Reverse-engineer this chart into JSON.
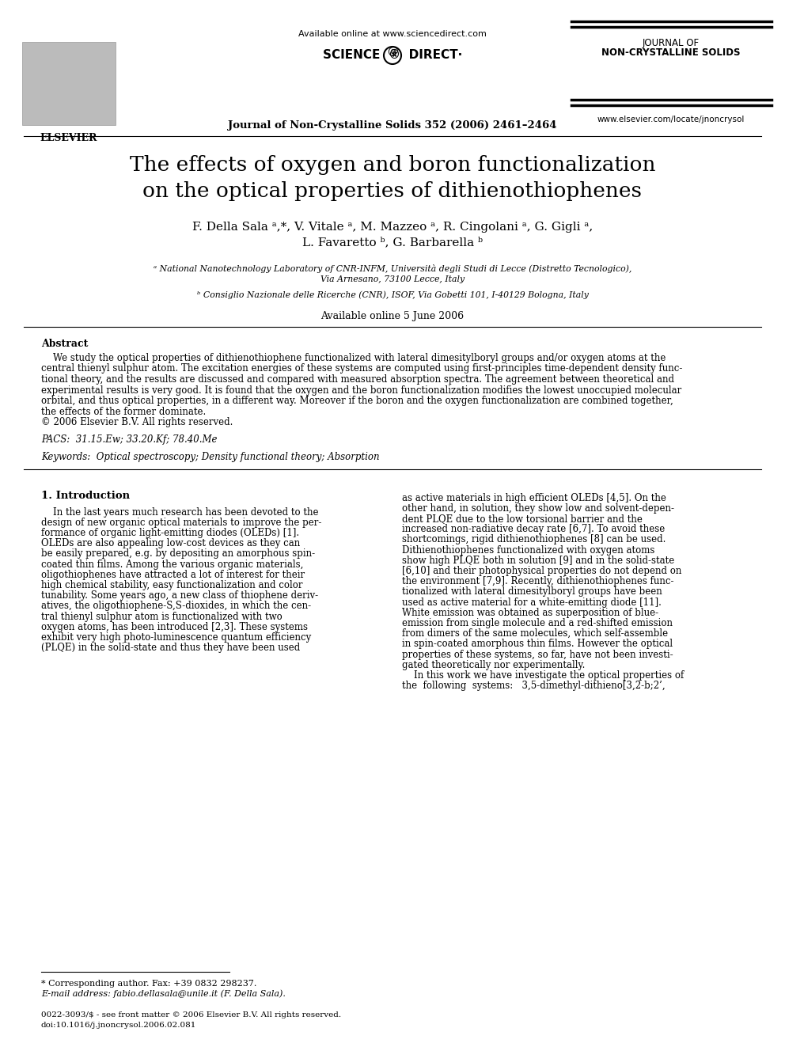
{
  "bg_color": "#ffffff",
  "header": {
    "available_online": "Available online at www.sciencedirect.com",
    "journal_name_line1": "JOURNAL OF",
    "journal_name_line2": "NON-CRYSTALLINE SOLIDS",
    "journal_ref": "Journal of Non-Crystalline Solids 352 (2006) 2461–2464",
    "website": "www.elsevier.com/locate/jnoncrysol",
    "sciencedirect_text": "SCIENCE  ®  DIRECT·"
  },
  "title": "The effects of oxygen and boron functionalization\non the optical properties of dithienothiophenes",
  "authors": "F. Della Sala ᵃ,*, V. Vitale ᵃ, M. Mazzeo ᵃ, R. Cingolani ᵃ, G. Gigli ᵃ,\nL. Favaretto ᵇ, G. Barbarella ᵇ",
  "affiliation_a": "ᵃ National Nanotechnology Laboratory of CNR-INFM, Università degli Studi di Lecce (Distretto Tecnologico),\nVia Arnesano, 73100 Lecce, Italy",
  "affiliation_b": "ᵇ Consiglio Nazionale delle Ricerche (CNR), ISOF, Via Gobetti 101, I-40129 Bologna, Italy",
  "available_online_date": "Available online 5 June 2006",
  "abstract_title": "Abstract",
  "abstract_lines": [
    "    We study the optical properties of dithienothiophene functionalized with lateral dimesitylboryl groups and/or oxygen atoms at the",
    "central thienyl sulphur atom. The excitation energies of these systems are computed using first-principles time-dependent density func-",
    "tional theory, and the results are discussed and compared with measured absorption spectra. The agreement between theoretical and",
    "experimental results is very good. It is found that the oxygen and the boron functionalization modifies the lowest unoccupied molecular",
    "orbital, and thus optical properties, in a different way. Moreover if the boron and the oxygen functionalization are combined together,",
    "the effects of the former dominate.",
    "© 2006 Elsevier B.V. All rights reserved."
  ],
  "pacs": "PACS:  31.15.Ew; 33.20.Kf; 78.40.Me",
  "keywords": "Keywords:  Optical spectroscopy; Density functional theory; Absorption",
  "section1_title": "1. Introduction",
  "col1_lines": [
    "    In the last years much research has been devoted to the",
    "design of new organic optical materials to improve the per-",
    "formance of organic light-emitting diodes (OLEDs) [1].",
    "OLEDs are also appealing low-cost devices as they can",
    "be easily prepared, e.g. by depositing an amorphous spin-",
    "coated thin films. Among the various organic materials,",
    "oligothiophenes have attracted a lot of interest for their",
    "high chemical stability, easy functionalization and color",
    "tunability. Some years ago, a new class of thiophene deriv-",
    "atives, the oligothiophene-S,S-dioxides, in which the cen-",
    "tral thienyl sulphur atom is functionalized with two",
    "oxygen atoms, has been introduced [2,3]. These systems",
    "exhibit very high photo-luminescence quantum efficiency",
    "(PLQE) in the solid-state and thus they have been used"
  ],
  "col2_lines": [
    "as active materials in high efficient OLEDs [4,5]. On the",
    "other hand, in solution, they show low and solvent-depen-",
    "dent PLQE due to the low torsional barrier and the",
    "increased non-radiative decay rate [6,7]. To avoid these",
    "shortcomings, rigid dithienothiophenes [8] can be used.",
    "Dithienothiophenes functionalized with oxygen atoms",
    "show high PLQE both in solution [9] and in the solid-state",
    "[6,10] and their photophysical properties do not depend on",
    "the environment [7,9]. Recently, dithienothiophenes func-",
    "tionalized with lateral dimesitylboryl groups have been",
    "used as active material for a white-emitting diode [11].",
    "White emission was obtained as superposition of blue-",
    "emission from single molecule and a red-shifted emission",
    "from dimers of the same molecules, which self-assemble",
    "in spin-coated amorphous thin films. However the optical",
    "properties of these systems, so far, have not been investi-",
    "gated theoretically nor experimentally.",
    "    In this work we have investigate the optical properties of",
    "the  following  systems:   3,5-dimethyl-dithieno[3,2-b;2’,"
  ],
  "footnote_star": "* Corresponding author. Fax: +39 0832 298237.",
  "footnote_email": "E-mail address: fabio.dellasala@unile.it (F. Della Sala).",
  "footer_issn": "0022-3093/$ - see front matter © 2006 Elsevier B.V. All rights reserved.",
  "footer_doi": "doi:10.1016/j.jnoncrysol.2006.02.081"
}
